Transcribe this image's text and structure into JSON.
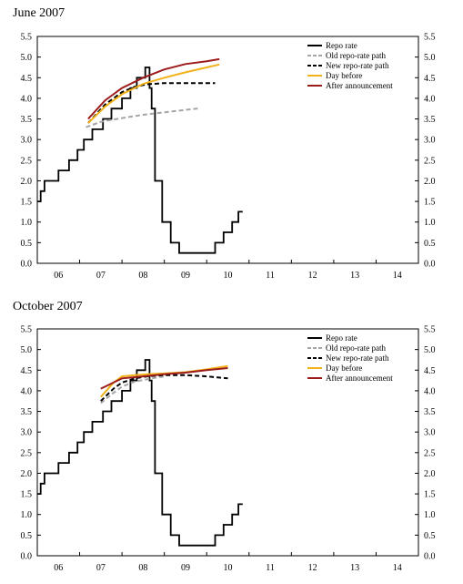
{
  "chart_data": [
    {
      "type": "line",
      "title": "June 2007",
      "ylim": [
        0,
        5.5
      ],
      "y_ticks": [
        "0.0",
        "0.5",
        "1.0",
        "1.5",
        "2.0",
        "2.5",
        "3.0",
        "3.5",
        "4.0",
        "4.5",
        "5.0",
        "5.5"
      ],
      "x_ticks": [
        "06",
        "07",
        "08",
        "09",
        "10",
        "11",
        "12",
        "13",
        "14"
      ],
      "xlim": [
        2006.0,
        2015.0
      ],
      "grid": false,
      "legend_position": "top-right",
      "series": [
        {
          "name": "Repo rate",
          "color": "#000000",
          "style": "step",
          "x": [
            2006.0,
            2006.08,
            2006.17,
            2006.5,
            2006.75,
            2006.95,
            2007.1,
            2007.3,
            2007.55,
            2007.75,
            2008.0,
            2008.2,
            2008.35,
            2008.55,
            2008.65,
            2008.7,
            2008.78,
            2008.95,
            2009.15,
            2009.35,
            2009.55,
            2009.8,
            2010.0,
            2010.2,
            2010.4,
            2010.6,
            2010.75,
            2010.85
          ],
          "y": [
            1.5,
            1.75,
            2.0,
            2.25,
            2.5,
            2.75,
            3.0,
            3.25,
            3.5,
            3.75,
            4.0,
            4.25,
            4.5,
            4.75,
            4.25,
            3.75,
            2.0,
            1.0,
            0.5,
            0.25,
            0.25,
            0.25,
            0.25,
            0.5,
            0.75,
            1.0,
            1.25,
            1.25
          ]
        },
        {
          "name": "Old repo-rate path",
          "color": "#a6a6a6",
          "style": "dashed",
          "x": [
            2007.15,
            2007.5,
            2008.0,
            2008.5,
            2009.0,
            2009.5,
            2009.85
          ],
          "y": [
            3.3,
            3.43,
            3.52,
            3.6,
            3.66,
            3.72,
            3.76
          ]
        },
        {
          "name": "New repo-rate path",
          "color": "#000000",
          "style": "dashed",
          "x": [
            2007.2,
            2007.6,
            2008.0,
            2008.3,
            2008.6,
            2009.0,
            2009.5,
            2010.0,
            2010.2
          ],
          "y": [
            3.4,
            3.85,
            4.15,
            4.28,
            4.34,
            4.37,
            4.37,
            4.37,
            4.37
          ]
        },
        {
          "name": "Day before",
          "color": "#f2b21a",
          "style": "solid",
          "x": [
            2007.2,
            2007.6,
            2008.0,
            2008.5,
            2009.0,
            2009.5,
            2010.0,
            2010.3
          ],
          "y": [
            3.4,
            3.8,
            4.1,
            4.35,
            4.5,
            4.63,
            4.75,
            4.82
          ]
        },
        {
          "name": "After announcement",
          "color": "#9c1c1c",
          "style": "solid",
          "x": [
            2007.2,
            2007.6,
            2008.0,
            2008.5,
            2009.0,
            2009.5,
            2010.0,
            2010.3
          ],
          "y": [
            3.5,
            3.95,
            4.25,
            4.5,
            4.7,
            4.83,
            4.9,
            4.95
          ]
        }
      ]
    },
    {
      "type": "line",
      "title": "October 2007",
      "ylim": [
        0,
        5.5
      ],
      "y_ticks": [
        "0.0",
        "0.5",
        "1.0",
        "1.5",
        "2.0",
        "2.5",
        "3.0",
        "3.5",
        "4.0",
        "4.5",
        "5.0",
        "5.5"
      ],
      "x_ticks": [
        "06",
        "07",
        "08",
        "09",
        "10",
        "11",
        "12",
        "13",
        "14"
      ],
      "xlim": [
        2006.0,
        2015.0
      ],
      "grid": false,
      "legend_position": "top-right",
      "series": [
        {
          "name": "Repo rate",
          "color": "#000000",
          "style": "step",
          "x": [
            2006.0,
            2006.08,
            2006.17,
            2006.5,
            2006.75,
            2006.95,
            2007.1,
            2007.3,
            2007.55,
            2007.75,
            2008.0,
            2008.2,
            2008.35,
            2008.55,
            2008.65,
            2008.7,
            2008.78,
            2008.95,
            2009.15,
            2009.35,
            2009.55,
            2009.8,
            2010.0,
            2010.2,
            2010.4,
            2010.6,
            2010.75,
            2010.85
          ],
          "y": [
            1.5,
            1.75,
            2.0,
            2.25,
            2.5,
            2.75,
            3.0,
            3.25,
            3.5,
            3.75,
            4.0,
            4.25,
            4.5,
            4.75,
            4.25,
            3.75,
            2.0,
            1.0,
            0.5,
            0.25,
            0.25,
            0.25,
            0.25,
            0.5,
            0.75,
            1.0,
            1.25,
            1.25
          ]
        },
        {
          "name": "Old repo-rate path",
          "color": "#a6a6a6",
          "style": "dashed",
          "x": [
            2007.5,
            2007.8,
            2008.0,
            2008.3,
            2008.7,
            2009.0
          ],
          "y": [
            3.7,
            3.95,
            4.1,
            4.22,
            4.3,
            4.35
          ]
        },
        {
          "name": "New repo-rate path",
          "color": "#000000",
          "style": "dashed",
          "x": [
            2007.5,
            2007.8,
            2008.0,
            2008.3,
            2008.6,
            2009.0,
            2009.5,
            2010.0,
            2010.5
          ],
          "y": [
            3.75,
            4.05,
            4.2,
            4.3,
            4.35,
            4.38,
            4.38,
            4.35,
            4.3
          ]
        },
        {
          "name": "Day before",
          "color": "#f2b21a",
          "style": "solid",
          "x": [
            2007.5,
            2007.8,
            2008.0,
            2008.3,
            2008.6,
            2009.0,
            2009.5,
            2010.0,
            2010.5
          ],
          "y": [
            3.85,
            4.2,
            4.35,
            4.38,
            4.4,
            4.42,
            4.45,
            4.52,
            4.6
          ]
        },
        {
          "name": "After announcement",
          "color": "#9c1c1c",
          "style": "solid",
          "x": [
            2007.5,
            2007.8,
            2008.0,
            2008.3,
            2008.6,
            2009.0,
            2009.5,
            2010.0,
            2010.5
          ],
          "y": [
            4.05,
            4.2,
            4.3,
            4.33,
            4.36,
            4.4,
            4.44,
            4.5,
            4.55
          ]
        }
      ]
    }
  ]
}
